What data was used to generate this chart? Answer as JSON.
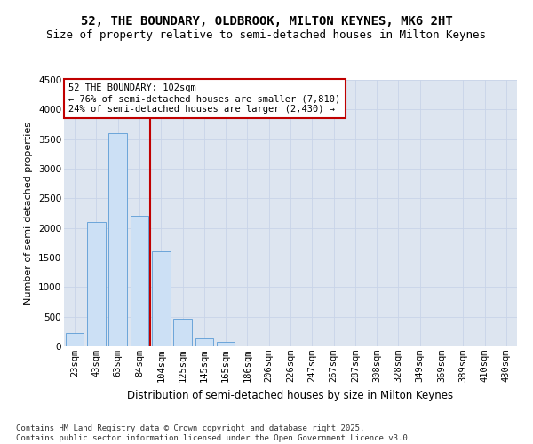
{
  "title": "52, THE BOUNDARY, OLDBROOK, MILTON KEYNES, MK6 2HT",
  "subtitle": "Size of property relative to semi-detached houses in Milton Keynes",
  "xlabel": "Distribution of semi-detached houses by size in Milton Keynes",
  "ylabel": "Number of semi-detached properties",
  "categories": [
    "23sqm",
    "43sqm",
    "63sqm",
    "84sqm",
    "104sqm",
    "125sqm",
    "145sqm",
    "165sqm",
    "186sqm",
    "206sqm",
    "226sqm",
    "247sqm",
    "267sqm",
    "287sqm",
    "308sqm",
    "328sqm",
    "349sqm",
    "369sqm",
    "389sqm",
    "410sqm",
    "430sqm"
  ],
  "values": [
    230,
    2100,
    3600,
    2200,
    1600,
    470,
    130,
    70,
    0,
    0,
    0,
    0,
    0,
    0,
    0,
    0,
    0,
    0,
    0,
    0,
    0
  ],
  "bar_color": "#cce0f5",
  "bar_edge_color": "#5b9bd5",
  "vline_index": 4,
  "vline_color": "#c00000",
  "annotation_text": "52 THE BOUNDARY: 102sqm\n← 76% of semi-detached houses are smaller (7,810)\n24% of semi-detached houses are larger (2,430) →",
  "annotation_box_color": "#c00000",
  "ylim": [
    0,
    4500
  ],
  "yticks": [
    0,
    500,
    1000,
    1500,
    2000,
    2500,
    3000,
    3500,
    4000,
    4500
  ],
  "title_fontsize": 10,
  "subtitle_fontsize": 9,
  "xlabel_fontsize": 8.5,
  "ylabel_fontsize": 8,
  "tick_fontsize": 7.5,
  "annotation_fontsize": 7.5,
  "footer_text": "Contains HM Land Registry data © Crown copyright and database right 2025.\nContains public sector information licensed under the Open Government Licence v3.0.",
  "footer_fontsize": 6.5,
  "background_color": "#ffffff",
  "plot_bg_color": "#dde5f0",
  "grid_color": "#c8d4e8"
}
